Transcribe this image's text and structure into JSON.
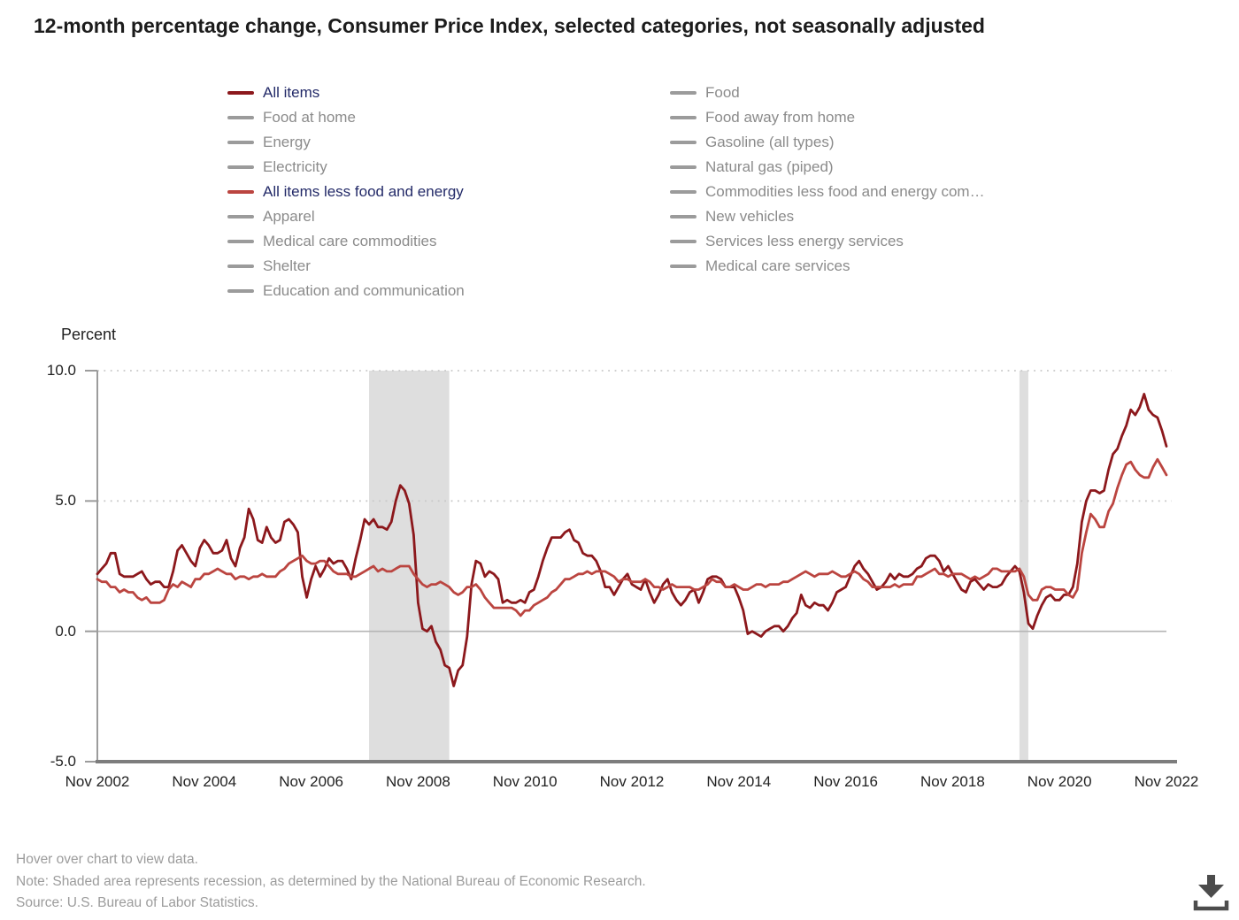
{
  "title": "12-month percentage change, Consumer Price Index, selected categories, not seasonally adjusted",
  "legend": {
    "selected_text_color": "#232a68",
    "unselected_text_color": "#8b8b8b",
    "unselected_swatch_color": "#9b9b9b",
    "columns": [
      {
        "items": [
          {
            "label": "All items",
            "selected": true,
            "color": "#8c181c"
          },
          {
            "label": "Food at home",
            "selected": false
          },
          {
            "label": "Energy",
            "selected": false
          },
          {
            "label": "Electricity",
            "selected": false
          },
          {
            "label": "All items less food and energy",
            "selected": true,
            "color": "#bb4540"
          },
          {
            "label": "Apparel",
            "selected": false
          },
          {
            "label": "Medical care commodities",
            "selected": false
          },
          {
            "label": "Shelter",
            "selected": false
          },
          {
            "label": "Education and communication",
            "selected": false
          }
        ]
      },
      {
        "items": [
          {
            "label": "Food",
            "selected": false
          },
          {
            "label": "Food away from home",
            "selected": false
          },
          {
            "label": "Gasoline (all types)",
            "selected": false
          },
          {
            "label": "Natural gas (piped)",
            "selected": false
          },
          {
            "label": "Commodities less food and energy com…",
            "selected": false
          },
          {
            "label": "New vehicles",
            "selected": false
          },
          {
            "label": "Services less energy services",
            "selected": false
          },
          {
            "label": "Medical care services",
            "selected": false
          }
        ]
      }
    ]
  },
  "chart_data": {
    "type": "line",
    "title": "12-month percentage change, Consumer Price Index, selected categories, not seasonally adjusted",
    "ylabel": "Percent",
    "ylim": [
      -5,
      10
    ],
    "yticks": [
      "10.0",
      "5.0",
      "0.0",
      "-5.0"
    ],
    "ytick_values": [
      10,
      5,
      0,
      -5
    ],
    "xticks": [
      "Nov 2002",
      "Nov 2004",
      "Nov 2006",
      "Nov 2008",
      "Nov 2010",
      "Nov 2012",
      "Nov 2014",
      "Nov 2016",
      "Nov 2018",
      "Nov 2020",
      "Nov 2022"
    ],
    "x_start": "2002-11",
    "x_end": "2022-11",
    "frequency": "monthly",
    "grid": "dotted horizontal at 5 and 10, solid at 0",
    "legend_position": "top",
    "recession_color": "#dedede",
    "recessions": [
      {
        "start": "2007-12",
        "end": "2009-06"
      },
      {
        "start": "2020-02",
        "end": "2020-04"
      }
    ],
    "series": [
      {
        "name": "All items",
        "color": "#8c181c",
        "values": [
          2.2,
          2.4,
          2.6,
          3.0,
          3.0,
          2.2,
          2.1,
          2.1,
          2.1,
          2.2,
          2.3,
          2.0,
          1.8,
          1.9,
          1.9,
          1.7,
          1.7,
          2.3,
          3.1,
          3.3,
          3.0,
          2.7,
          2.5,
          3.2,
          3.5,
          3.3,
          3.0,
          3.0,
          3.1,
          3.5,
          2.8,
          2.5,
          3.2,
          3.6,
          4.7,
          4.3,
          3.5,
          3.4,
          4.0,
          3.6,
          3.4,
          3.5,
          4.2,
          4.3,
          4.1,
          3.8,
          2.1,
          1.3,
          2.0,
          2.5,
          2.1,
          2.4,
          2.8,
          2.6,
          2.7,
          2.7,
          2.4,
          2.0,
          2.8,
          3.5,
          4.3,
          4.1,
          4.3,
          4.0,
          4.0,
          3.9,
          4.2,
          5.0,
          5.6,
          5.4,
          4.9,
          3.7,
          1.1,
          0.1,
          0.0,
          0.2,
          -0.4,
          -0.7,
          -1.3,
          -1.4,
          -2.1,
          -1.5,
          -1.3,
          -0.2,
          1.8,
          2.7,
          2.6,
          2.1,
          2.3,
          2.2,
          2.0,
          1.1,
          1.2,
          1.1,
          1.1,
          1.2,
          1.1,
          1.5,
          1.6,
          2.1,
          2.7,
          3.2,
          3.6,
          3.6,
          3.6,
          3.8,
          3.9,
          3.5,
          3.4,
          3.0,
          2.9,
          2.9,
          2.7,
          2.3,
          1.7,
          1.7,
          1.4,
          1.7,
          2.0,
          2.2,
          1.8,
          1.7,
          1.6,
          2.0,
          1.5,
          1.1,
          1.4,
          1.8,
          2.0,
          1.5,
          1.2,
          1.0,
          1.2,
          1.5,
          1.6,
          1.1,
          1.5,
          2.0,
          2.1,
          2.1,
          2.0,
          1.7,
          1.7,
          1.7,
          1.3,
          0.8,
          -0.1,
          0.0,
          -0.1,
          -0.2,
          0.0,
          0.1,
          0.2,
          0.2,
          0.0,
          0.2,
          0.5,
          0.7,
          1.4,
          1.0,
          0.9,
          1.1,
          1.0,
          1.0,
          0.8,
          1.1,
          1.5,
          1.6,
          1.7,
          2.1,
          2.5,
          2.7,
          2.4,
          2.2,
          1.9,
          1.6,
          1.7,
          1.9,
          2.2,
          2.0,
          2.2,
          2.1,
          2.1,
          2.2,
          2.4,
          2.5,
          2.8,
          2.9,
          2.9,
          2.7,
          2.3,
          2.5,
          2.2,
          1.9,
          1.6,
          1.5,
          1.9,
          2.0,
          1.8,
          1.6,
          1.8,
          1.7,
          1.7,
          1.8,
          2.1,
          2.3,
          2.5,
          2.3,
          1.5,
          0.3,
          0.1,
          0.6,
          1.0,
          1.3,
          1.4,
          1.2,
          1.2,
          1.4,
          1.4,
          1.7,
          2.6,
          4.2,
          5.0,
          5.4,
          5.4,
          5.3,
          5.4,
          6.2,
          6.8,
          7.0,
          7.5,
          7.9,
          8.5,
          8.3,
          8.6,
          9.1,
          8.5,
          8.3,
          8.2,
          7.7,
          7.1
        ]
      },
      {
        "name": "All items less food and energy",
        "color": "#bb4540",
        "values": [
          2.0,
          1.9,
          1.9,
          1.7,
          1.7,
          1.5,
          1.6,
          1.5,
          1.5,
          1.3,
          1.2,
          1.3,
          1.1,
          1.1,
          1.1,
          1.2,
          1.6,
          1.8,
          1.7,
          1.9,
          1.8,
          1.7,
          2.0,
          2.0,
          2.2,
          2.2,
          2.3,
          2.4,
          2.3,
          2.2,
          2.2,
          2.0,
          2.1,
          2.1,
          2.0,
          2.1,
          2.1,
          2.2,
          2.1,
          2.1,
          2.1,
          2.3,
          2.4,
          2.6,
          2.7,
          2.8,
          2.9,
          2.7,
          2.6,
          2.6,
          2.7,
          2.7,
          2.5,
          2.3,
          2.2,
          2.2,
          2.2,
          2.1,
          2.1,
          2.2,
          2.3,
          2.4,
          2.5,
          2.3,
          2.4,
          2.3,
          2.3,
          2.4,
          2.5,
          2.5,
          2.5,
          2.2,
          2.0,
          1.8,
          1.7,
          1.8,
          1.8,
          1.9,
          1.8,
          1.7,
          1.5,
          1.4,
          1.5,
          1.7,
          1.7,
          1.8,
          1.6,
          1.3,
          1.1,
          0.9,
          0.9,
          0.9,
          0.9,
          0.9,
          0.8,
          0.6,
          0.8,
          0.8,
          1.0,
          1.1,
          1.2,
          1.3,
          1.5,
          1.6,
          1.8,
          2.0,
          2.0,
          2.1,
          2.2,
          2.2,
          2.3,
          2.2,
          2.3,
          2.3,
          2.3,
          2.2,
          2.1,
          1.9,
          2.0,
          2.0,
          1.9,
          1.9,
          1.9,
          2.0,
          1.9,
          1.7,
          1.7,
          1.6,
          1.7,
          1.8,
          1.7,
          1.7,
          1.7,
          1.7,
          1.6,
          1.6,
          1.7,
          1.8,
          2.0,
          1.9,
          1.9,
          1.7,
          1.7,
          1.8,
          1.7,
          1.6,
          1.6,
          1.7,
          1.8,
          1.8,
          1.7,
          1.8,
          1.8,
          1.8,
          1.9,
          1.9,
          2.0,
          2.1,
          2.2,
          2.3,
          2.2,
          2.1,
          2.2,
          2.2,
          2.2,
          2.3,
          2.2,
          2.1,
          2.1,
          2.2,
          2.3,
          2.2,
          2.0,
          1.9,
          1.7,
          1.7,
          1.7,
          1.7,
          1.7,
          1.8,
          1.7,
          1.8,
          1.8,
          1.8,
          2.1,
          2.1,
          2.2,
          2.3,
          2.4,
          2.2,
          2.2,
          2.1,
          2.2,
          2.2,
          2.2,
          2.1,
          2.0,
          2.1,
          2.0,
          2.1,
          2.2,
          2.4,
          2.4,
          2.3,
          2.3,
          2.3,
          2.3,
          2.4,
          2.1,
          1.4,
          1.2,
          1.2,
          1.6,
          1.7,
          1.7,
          1.6,
          1.6,
          1.6,
          1.4,
          1.3,
          1.6,
          3.0,
          3.8,
          4.5,
          4.3,
          4.0,
          4.0,
          4.6,
          4.9,
          5.5,
          6.0,
          6.4,
          6.5,
          6.2,
          6.0,
          5.9,
          5.9,
          6.3,
          6.6,
          6.3,
          6.0
        ]
      }
    ]
  },
  "footer": {
    "hover": "Hover over chart to view data.",
    "note": "Note: Shaded area represents recession, as determined by the National Bureau of Economic Research.",
    "source": "Source: U.S. Bureau of Labor Statistics."
  }
}
